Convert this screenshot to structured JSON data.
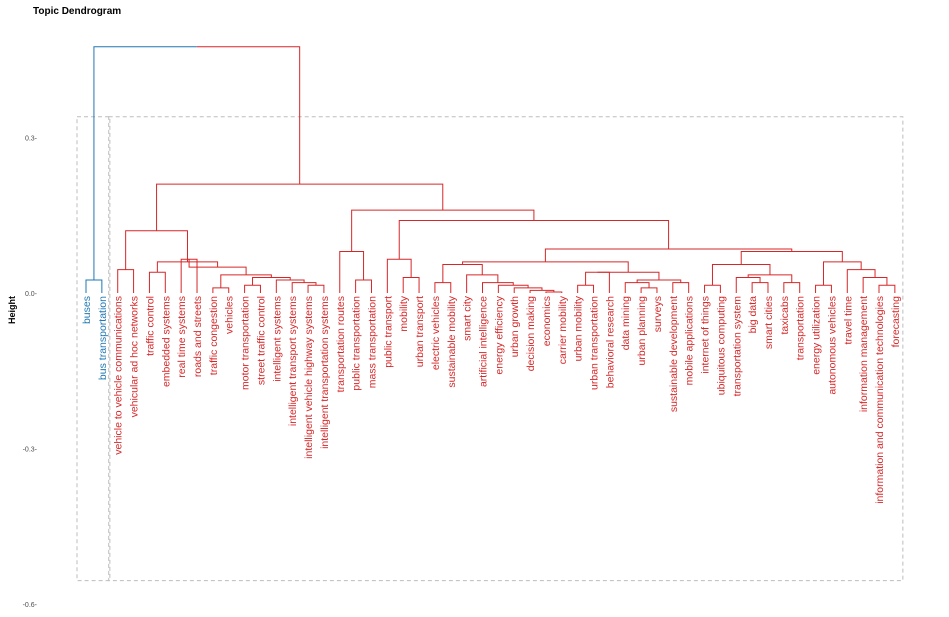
{
  "chart_data": {
    "type": "dendrogram",
    "title": "Topic Dendrogram",
    "ylabel": "Height",
    "ylim": [
      -0.6,
      0.5
    ],
    "yticks": [
      0.3,
      0.0,
      -0.3,
      -0.6
    ],
    "ytick_labels": [
      "0.3-",
      "0.0-",
      "-0.3-",
      "-0.6-"
    ],
    "colors": {
      "cluster1": "#1f77b4",
      "cluster2": "#d62728",
      "box": "#bdbdbd",
      "root": "#1f77b4"
    },
    "leaves": [
      {
        "label": "buses",
        "cluster": 1
      },
      {
        "label": "bus transportation",
        "cluster": 1
      },
      {
        "label": "vehicle to vehicle communications",
        "cluster": 2
      },
      {
        "label": "vehicular ad hoc networks",
        "cluster": 2
      },
      {
        "label": "traffic control",
        "cluster": 2
      },
      {
        "label": "embedded systems",
        "cluster": 2
      },
      {
        "label": "real time systems",
        "cluster": 2
      },
      {
        "label": "roads and streets",
        "cluster": 2
      },
      {
        "label": "traffic congestion",
        "cluster": 2
      },
      {
        "label": "vehicles",
        "cluster": 2
      },
      {
        "label": "motor transportation",
        "cluster": 2
      },
      {
        "label": "street traffic control",
        "cluster": 2
      },
      {
        "label": "intelligent systems",
        "cluster": 2
      },
      {
        "label": "intelligent transport systems",
        "cluster": 2
      },
      {
        "label": "intelligent vehicle highway systems",
        "cluster": 2
      },
      {
        "label": "intelligent transportation systems",
        "cluster": 2
      },
      {
        "label": "transportation routes",
        "cluster": 2
      },
      {
        "label": "public transportation",
        "cluster": 2
      },
      {
        "label": "mass transportation",
        "cluster": 2
      },
      {
        "label": "public transport",
        "cluster": 2
      },
      {
        "label": "mobility",
        "cluster": 2
      },
      {
        "label": "urban transport",
        "cluster": 2
      },
      {
        "label": "electric vehicles",
        "cluster": 2
      },
      {
        "label": "sustainable mobility",
        "cluster": 2
      },
      {
        "label": "smart city",
        "cluster": 2
      },
      {
        "label": "artificial intelligence",
        "cluster": 2
      },
      {
        "label": "energy efficiency",
        "cluster": 2
      },
      {
        "label": "urban growth",
        "cluster": 2
      },
      {
        "label": "decision making",
        "cluster": 2
      },
      {
        "label": "economics",
        "cluster": 2
      },
      {
        "label": "carrier mobility",
        "cluster": 2
      },
      {
        "label": "urban mobility",
        "cluster": 2
      },
      {
        "label": "urban transportation",
        "cluster": 2
      },
      {
        "label": "behavioral research",
        "cluster": 2
      },
      {
        "label": "data mining",
        "cluster": 2
      },
      {
        "label": "urban planning",
        "cluster": 2
      },
      {
        "label": "surveys",
        "cluster": 2
      },
      {
        "label": "sustainable development",
        "cluster": 2
      },
      {
        "label": "mobile applications",
        "cluster": 2
      },
      {
        "label": "internet of things",
        "cluster": 2
      },
      {
        "label": "ubiquitous computing",
        "cluster": 2
      },
      {
        "label": "transportation system",
        "cluster": 2
      },
      {
        "label": "big data",
        "cluster": 2
      },
      {
        "label": "smart cities",
        "cluster": 2
      },
      {
        "label": "taxicabs",
        "cluster": 2
      },
      {
        "label": "transportation",
        "cluster": 2
      },
      {
        "label": "energy utilization",
        "cluster": 2
      },
      {
        "label": "autonomous vehicles",
        "cluster": 2
      },
      {
        "label": "travel time",
        "cluster": 2
      },
      {
        "label": "information management",
        "cluster": 2
      },
      {
        "label": "information and communication technologies",
        "cluster": 2
      },
      {
        "label": "forecasting",
        "cluster": 2
      }
    ],
    "merges": [
      {
        "a": 0,
        "b": 1,
        "h": 0.025,
        "color": "cluster1"
      },
      {
        "a": 2,
        "b": 3,
        "h": 0.045,
        "color": "cluster2"
      },
      {
        "a": 4,
        "b": 5,
        "h": 0.04,
        "color": "cluster2"
      },
      {
        "a": 6,
        "b": 7,
        "h": 0.065,
        "color": "cluster2"
      },
      {
        "a": 8,
        "b": 9,
        "h": 0.01,
        "color": "cluster2"
      },
      {
        "a": 10,
        "b": 11,
        "h": 0.015,
        "color": "cluster2"
      },
      {
        "a": 14,
        "b": 15,
        "h": 0.015,
        "color": "cluster2"
      },
      {
        "a": 13,
        "b": -7,
        "h": 0.02,
        "color": "cluster2"
      },
      {
        "a": 12,
        "b": -8,
        "h": 0.025,
        "color": "cluster2"
      },
      {
        "a": -6,
        "b": -9,
        "h": 0.03,
        "color": "cluster2"
      },
      {
        "a": -5,
        "b": -10,
        "h": 0.035,
        "color": "cluster2"
      },
      {
        "a": -4,
        "b": -11,
        "h": 0.05,
        "color": "cluster2"
      },
      {
        "a": -3,
        "b": -12,
        "h": 0.06,
        "color": "cluster2"
      },
      {
        "a": -2,
        "b": -13,
        "h": 0.12,
        "color": "cluster2"
      },
      {
        "a": 17,
        "b": 18,
        "h": 0.025,
        "color": "cluster2"
      },
      {
        "a": 16,
        "b": -15,
        "h": 0.08,
        "color": "cluster2"
      },
      {
        "a": 20,
        "b": 21,
        "h": 0.03,
        "color": "cluster2"
      },
      {
        "a": 19,
        "b": -17,
        "h": 0.065,
        "color": "cluster2"
      },
      {
        "a": 22,
        "b": 23,
        "h": 0.02,
        "color": "cluster2"
      },
      {
        "a": 29,
        "b": 30,
        "h": 0.002,
        "color": "cluster2"
      },
      {
        "a": 28,
        "b": -20,
        "h": 0.005,
        "color": "cluster2"
      },
      {
        "a": 27,
        "b": -21,
        "h": 0.01,
        "color": "cluster2"
      },
      {
        "a": 26,
        "b": -22,
        "h": 0.015,
        "color": "cluster2"
      },
      {
        "a": 25,
        "b": -23,
        "h": 0.02,
        "color": "cluster2"
      },
      {
        "a": 24,
        "b": -24,
        "h": 0.035,
        "color": "cluster2"
      },
      {
        "a": -19,
        "b": -25,
        "h": 0.055,
        "color": "cluster2"
      },
      {
        "a": 31,
        "b": 32,
        "h": 0.015,
        "color": "cluster2"
      },
      {
        "a": -27,
        "b": 33,
        "h": 0.04,
        "color": "cluster2"
      },
      {
        "a": 35,
        "b": 36,
        "h": 0.01,
        "color": "cluster2"
      },
      {
        "a": 34,
        "b": -29,
        "h": 0.02,
        "color": "cluster2"
      },
      {
        "a": 37,
        "b": 38,
        "h": 0.02,
        "color": "cluster2"
      },
      {
        "a": -30,
        "b": -31,
        "h": 0.025,
        "color": "cluster2"
      },
      {
        "a": -28,
        "b": -32,
        "h": 0.04,
        "color": "cluster2"
      },
      {
        "a": -26,
        "b": -33,
        "h": 0.06,
        "color": "cluster2"
      },
      {
        "a": 39,
        "b": 40,
        "h": 0.015,
        "color": "cluster2"
      },
      {
        "a": 42,
        "b": 43,
        "h": 0.02,
        "color": "cluster2"
      },
      {
        "a": 41,
        "b": -36,
        "h": 0.03,
        "color": "cluster2"
      },
      {
        "a": 44,
        "b": 45,
        "h": 0.02,
        "color": "cluster2"
      },
      {
        "a": -37,
        "b": -38,
        "h": 0.035,
        "color": "cluster2"
      },
      {
        "a": -35,
        "b": -39,
        "h": 0.055,
        "color": "cluster2"
      },
      {
        "a": 46,
        "b": 47,
        "h": 0.015,
        "color": "cluster2"
      },
      {
        "a": 50,
        "b": 51,
        "h": 0.015,
        "color": "cluster2"
      },
      {
        "a": 49,
        "b": -42,
        "h": 0.03,
        "color": "cluster2"
      },
      {
        "a": 48,
        "b": -43,
        "h": 0.045,
        "color": "cluster2"
      },
      {
        "a": -41,
        "b": -44,
        "h": 0.06,
        "color": "cluster2"
      },
      {
        "a": -40,
        "b": -45,
        "h": 0.08,
        "color": "cluster2"
      },
      {
        "a": -34,
        "b": -46,
        "h": 0.085,
        "color": "cluster2"
      },
      {
        "a": -18,
        "b": -47,
        "h": 0.14,
        "color": "cluster2"
      },
      {
        "a": -16,
        "b": -48,
        "h": 0.16,
        "color": "cluster2"
      },
      {
        "a": -14,
        "b": -49,
        "h": 0.21,
        "color": "cluster2"
      },
      {
        "a": -1,
        "b": -50,
        "h": 0.475,
        "color": "root"
      }
    ],
    "rect_clusters": [
      {
        "from": 0,
        "to": 1
      },
      {
        "from": 2,
        "to": 51
      }
    ]
  }
}
